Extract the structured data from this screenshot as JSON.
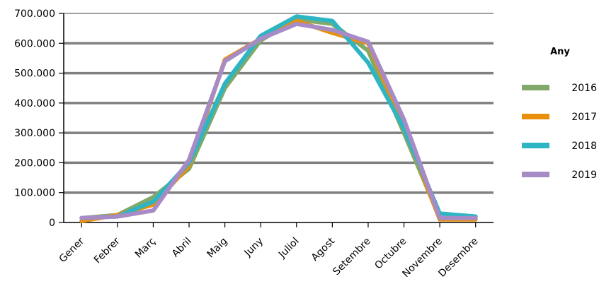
{
  "chart_data": {
    "type": "line",
    "title": "",
    "xlabel": "",
    "ylabel": "",
    "categories": [
      "Gener",
      "Febrer",
      "Març",
      "Abril",
      "Maig",
      "Juny",
      "Juliol",
      "Agost",
      "Setembre",
      "Octubre",
      "Novembre",
      "Desembre"
    ],
    "y_ticks": [
      "0",
      "100.000",
      "200.000",
      "300.000",
      "400.000",
      "500.000",
      "600.000",
      "700.000"
    ],
    "ylim": [
      0,
      700000
    ],
    "grid": true,
    "legend": {
      "title": "Any",
      "placement": "right"
    },
    "series": [
      {
        "name": "2016",
        "color": "#82a86a",
        "values": [
          15000,
          25000,
          85000,
          180000,
          450000,
          610000,
          680000,
          665000,
          575000,
          300000,
          15000,
          15000
        ]
      },
      {
        "name": "2017",
        "color": "#e8900c",
        "values": [
          5000,
          25000,
          60000,
          190000,
          545000,
          615000,
          675000,
          635000,
          600000,
          320000,
          10000,
          10000
        ]
      },
      {
        "name": "2018",
        "color": "#2eb5c4",
        "values": [
          15000,
          20000,
          70000,
          200000,
          465000,
          625000,
          690000,
          675000,
          535000,
          315000,
          30000,
          20000
        ]
      },
      {
        "name": "2019",
        "color": "#a78bc6",
        "values": [
          15000,
          20000,
          40000,
          210000,
          540000,
          615000,
          665000,
          645000,
          605000,
          345000,
          15000,
          15000
        ]
      }
    ]
  }
}
